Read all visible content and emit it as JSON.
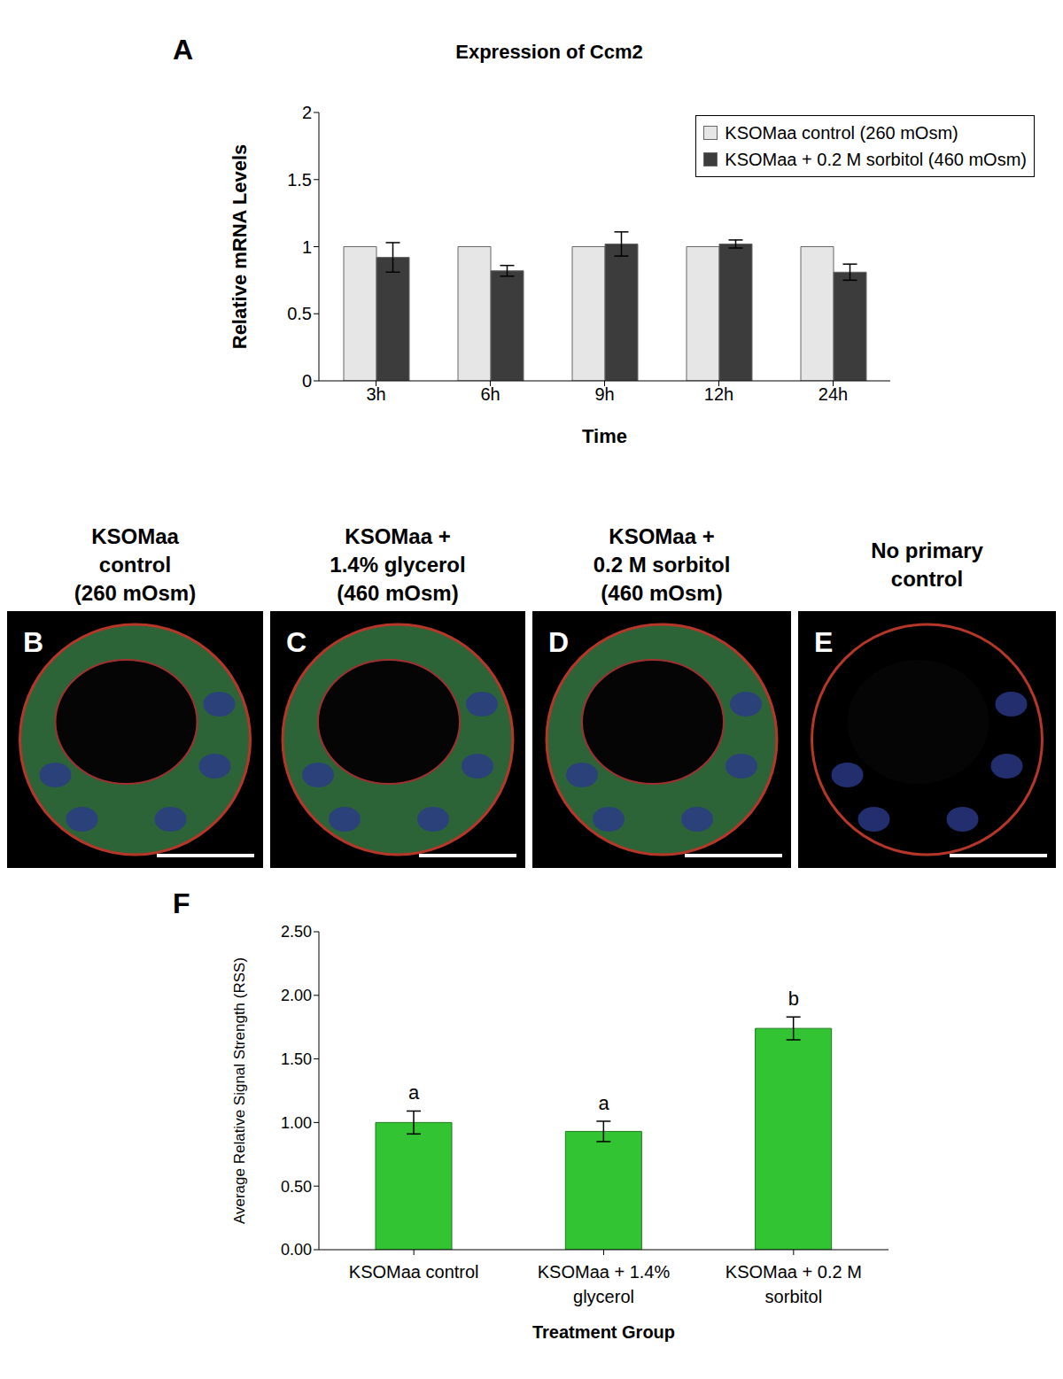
{
  "chart_data": [
    {
      "panel": "A",
      "type": "bar",
      "title": "Expression of Ccm2",
      "x_label": "Time",
      "y_label": "Relative mRNA Levels",
      "categories": [
        "3h",
        "6h",
        "9h",
        "12h",
        "24h"
      ],
      "series": [
        {
          "name": "KSOMaa control (260 mOsm)",
          "color": "#e6e6e6",
          "values": [
            1,
            1,
            1,
            1,
            1
          ]
        },
        {
          "name": "KSOMaa + 0.2 M sorbitol (460 mOsm)",
          "color": "#3c3c3c",
          "values": [
            0.92,
            0.82,
            1.02,
            1.02,
            0.81
          ],
          "errors": [
            0.11,
            0.04,
            0.09,
            0.03,
            0.06
          ]
        }
      ],
      "ylim": [
        0,
        2
      ],
      "yticks": [
        0,
        0.5,
        1,
        1.5,
        2
      ],
      "grid": false,
      "legend": "top-right"
    },
    {
      "panel": "F",
      "type": "bar",
      "x_label": "Treatment Group",
      "y_label": "Average Relative Signal Strength (RSS)",
      "categories": [
        "KSOMaa control",
        "KSOMaa + 1.4% glycerol",
        "KSOMaa + 0.2 M sorbitol"
      ],
      "values": [
        1.0,
        0.93,
        1.74
      ],
      "errors": [
        0.09,
        0.08,
        0.09
      ],
      "letters": [
        "a",
        "a",
        "b"
      ],
      "color": "#33c433",
      "ylim": [
        0,
        2.5
      ],
      "yticks": [
        {
          "value": 0,
          "label": "0.00"
        },
        {
          "value": 0.5,
          "label": "0.50"
        },
        {
          "value": 1,
          "label": "1.00"
        },
        {
          "value": 1.5,
          "label": "1.50"
        },
        {
          "value": 2,
          "label": "2.00"
        },
        {
          "value": 2.5,
          "label": "2.50"
        }
      ],
      "grid": false
    }
  ],
  "image_panels": [
    {
      "panel": "B",
      "title_lines": [
        "KSOMaa",
        "control",
        "(260 mOsm)"
      ]
    },
    {
      "panel": "C",
      "title_lines": [
        "KSOMaa +",
        "1.4% glycerol",
        "(460 mOsm)"
      ]
    },
    {
      "panel": "D",
      "title_lines": [
        "KSOMaa +",
        "0.2 M sorbitol",
        "(460 mOsm)"
      ]
    },
    {
      "panel": "E",
      "title_lines": [
        "No primary",
        "control"
      ]
    }
  ]
}
